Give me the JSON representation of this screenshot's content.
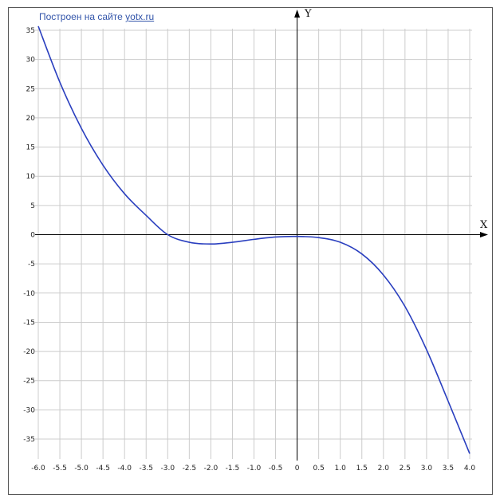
{
  "credit": {
    "text": "Построен на сайте",
    "link": "yotx.ru"
  },
  "chart_data": {
    "type": "line",
    "title": "",
    "xlabel": "X",
    "ylabel": "Y",
    "xlim": [
      -6.0,
      4.0
    ],
    "ylim": [
      -38,
      35
    ],
    "grid": true,
    "x_ticks": [
      "-6.0",
      "-5.5",
      "-5.0",
      "-4.5",
      "-4.0",
      "-3.5",
      "-3.0",
      "-2.5",
      "-2.0",
      "-1.5",
      "-1.0",
      "-0.5",
      "0",
      "0.5",
      "1.0",
      "1.5",
      "2.0",
      "2.5",
      "3.0",
      "3.5",
      "4.0"
    ],
    "y_ticks": [
      "35",
      "30",
      "25",
      "20",
      "15",
      "10",
      "5",
      "0",
      "-5",
      "-10",
      "-15",
      "-20",
      "-25",
      "-30",
      "-35"
    ],
    "series": [
      {
        "color": "#2a3fbf",
        "x": [
          -6.0,
          -5.5,
          -5.0,
          -4.5,
          -4.0,
          -3.5,
          -3.0,
          -2.5,
          -2.0,
          -1.5,
          -1.0,
          -0.5,
          0,
          0.5,
          1.0,
          1.5,
          2.0,
          2.5,
          3.0,
          3.5,
          4.0
        ],
        "y": [
          35.7,
          26.1,
          18.2,
          11.9,
          7.0,
          3.3,
          0.0,
          -1.3,
          -1.6,
          -1.3,
          -0.8,
          -0.4,
          -0.3,
          -0.5,
          -1.3,
          -3.3,
          -6.9,
          -12.3,
          -19.7,
          -28.5,
          -37.5
        ]
      }
    ]
  },
  "colors": {
    "grid": "#cccccc",
    "axis": "#000000",
    "curve": "#2a3fbf",
    "credit": "#3355aa"
  }
}
